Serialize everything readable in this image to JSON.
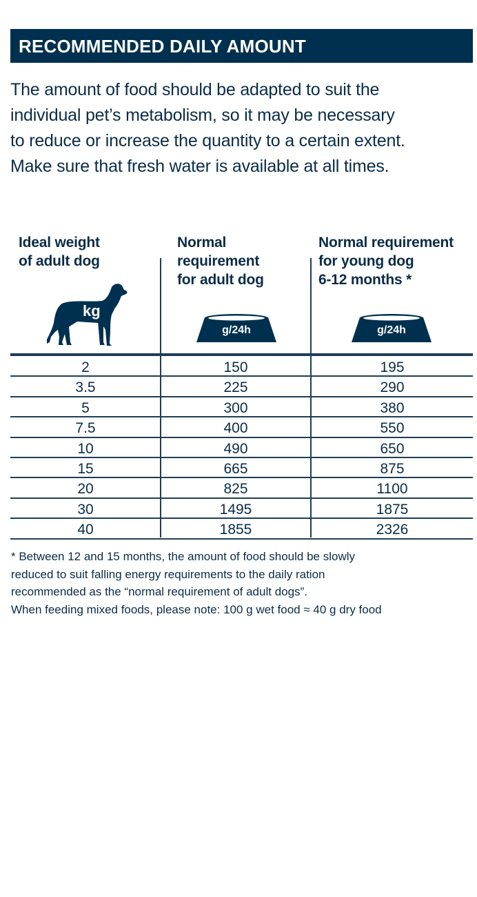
{
  "header": {
    "title": "RECOMMENDED DAILY AMOUNT"
  },
  "intro": [
    "The amount of food should be adapted to suit the",
    "individual pet’s metabolism, so it may be necessary",
    "to reduce or increase the quantity to a certain extent.",
    "Make sure that fresh water is available at all times."
  ],
  "table": {
    "columns": [
      {
        "lines": [
          "Ideal weight",
          "of adult dog"
        ],
        "icon": "dog-icon",
        "unit": "kg"
      },
      {
        "lines": [
          "Normal",
          "requirement",
          "for adult dog"
        ],
        "icon": "food-bowl-icon",
        "unit": "g/24h"
      },
      {
        "lines": [
          "Normal requirement",
          "for young dog",
          "6-12 months *"
        ],
        "icon": "food-bowl-icon",
        "unit": "g/24h"
      }
    ],
    "rows": [
      [
        "2",
        "150",
        "195"
      ],
      [
        "3.5",
        "225",
        "290"
      ],
      [
        "5",
        "300",
        "380"
      ],
      [
        "7.5",
        "400",
        "550"
      ],
      [
        "10",
        "490",
        "650"
      ],
      [
        "15",
        "665",
        "875"
      ],
      [
        "20",
        "825",
        "1100"
      ],
      [
        "30",
        "1495",
        "1875"
      ],
      [
        "40",
        "1855",
        "2326"
      ]
    ]
  },
  "footnote": [
    "* Between 12 and 15 months, the amount of food should be slowly",
    "reduced to suit falling energy requirements to the daily ration",
    "recommended as the “normal requirement of adult dogs”.",
    "When feeding mixed foods, please note: 100 g wet food ≈ 40 g dry food"
  ],
  "colors": {
    "brand": "#00304f",
    "text": "#0b2c47"
  }
}
